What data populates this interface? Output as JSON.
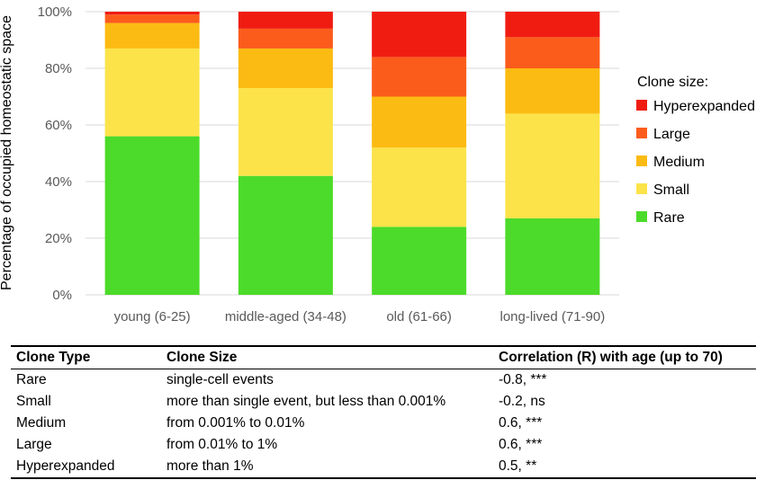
{
  "chart_data": {
    "type": "bar",
    "stacked": true,
    "categories": [
      "young (6-25)",
      "middle-aged (34-48)",
      "old (61-66)",
      "long-lived (71-90)"
    ],
    "ylabel": "Percentage of occupied homeostatic space",
    "ylim": [
      0,
      100
    ],
    "yticks": [
      "0%",
      "20%",
      "40%",
      "60%",
      "80%",
      "100%"
    ],
    "grid": true,
    "legend": {
      "title": "Clone size:",
      "placement": "right"
    },
    "series": [
      {
        "name": "Rare",
        "color": "#4cdb2a",
        "values": [
          56,
          42,
          24,
          27
        ]
      },
      {
        "name": "Small",
        "color": "#fce34a",
        "values": [
          31,
          31,
          28,
          37
        ]
      },
      {
        "name": "Medium",
        "color": "#fcbb12",
        "values": [
          9,
          14,
          18,
          16
        ]
      },
      {
        "name": "Large",
        "color": "#fb5c1c",
        "values": [
          3,
          7,
          14,
          11
        ]
      },
      {
        "name": "Hyperexpanded",
        "color": "#f01c12",
        "values": [
          1,
          6,
          16,
          9
        ]
      }
    ]
  },
  "table": {
    "headers": [
      "Clone Type",
      "Clone Size",
      "Correlation (R) with age (up to 70)"
    ],
    "rows": [
      [
        "Rare",
        "single-cell events",
        "-0.8, ***"
      ],
      [
        "Small",
        "more than single event, but less than 0.001%",
        "-0.2, ns"
      ],
      [
        "Medium",
        "from 0.001% to 0.01%",
        " 0.6, ***"
      ],
      [
        "Large",
        "from 0.01% to 1%",
        " 0.6, ***"
      ],
      [
        "Hyperexpanded",
        "more than 1%",
        " 0.5, **"
      ]
    ]
  }
}
